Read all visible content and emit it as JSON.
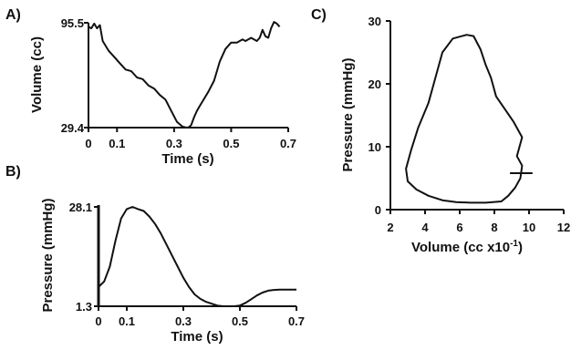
{
  "chart_data": [
    {
      "panel": "A)",
      "type": "line",
      "xlabel": "Time (s)",
      "ylabel": "Volume (cc)",
      "xlim": [
        0,
        0.7
      ],
      "ylim": [
        29.4,
        95.5
      ],
      "xticks": [
        0,
        0.1,
        0.3,
        0.5,
        0.7
      ],
      "xtick_labels": [
        "0",
        "0.1",
        "0.3",
        "0.5",
        "0.7"
      ],
      "yticks": [
        29.4,
        95.5
      ],
      "ytick_labels": [
        "29.4",
        "95.5"
      ],
      "x": [
        0,
        0.01,
        0.02,
        0.03,
        0.04,
        0.05,
        0.07,
        0.09,
        0.11,
        0.13,
        0.15,
        0.17,
        0.19,
        0.21,
        0.23,
        0.25,
        0.27,
        0.29,
        0.31,
        0.33,
        0.34,
        0.35,
        0.36,
        0.37,
        0.38,
        0.39,
        0.4,
        0.42,
        0.44,
        0.45,
        0.46,
        0.47,
        0.48,
        0.5,
        0.52,
        0.54,
        0.55,
        0.57,
        0.59,
        0.6,
        0.61,
        0.62,
        0.63,
        0.64,
        0.65,
        0.66,
        0.67
      ],
      "y": [
        93,
        92,
        95,
        92,
        94,
        84,
        78,
        74,
        70,
        66,
        65,
        61,
        60,
        56,
        54,
        50,
        47,
        40,
        33,
        30,
        29.6,
        29.4,
        31,
        36,
        40,
        43,
        46,
        52,
        59,
        65,
        71,
        75,
        79,
        83,
        83,
        85,
        84,
        86,
        84,
        86,
        91,
        87,
        86,
        92,
        96,
        95,
        93
      ]
    },
    {
      "panel": "B)",
      "type": "line",
      "xlabel": "Time (s)",
      "ylabel": "Pressure (mmHg)",
      "xlim": [
        0,
        0.7
      ],
      "ylim": [
        1.3,
        28.1
      ],
      "xticks": [
        0,
        0.1,
        0.3,
        0.5,
        0.7
      ],
      "xtick_labels": [
        "0",
        "0.1",
        "0.3",
        "0.5",
        "0.7"
      ],
      "yticks": [
        1.3,
        28.1
      ],
      "ytick_labels": [
        "1.3",
        "28.1"
      ],
      "x": [
        0,
        0.02,
        0.04,
        0.06,
        0.08,
        0.1,
        0.12,
        0.14,
        0.16,
        0.18,
        0.2,
        0.22,
        0.24,
        0.26,
        0.28,
        0.3,
        0.32,
        0.34,
        0.36,
        0.38,
        0.4,
        0.42,
        0.44,
        0.46,
        0.48,
        0.5,
        0.52,
        0.54,
        0.56,
        0.58,
        0.6,
        0.62,
        0.64,
        0.66,
        0.68,
        0.7
      ],
      "y": [
        6.5,
        8,
        12,
        19,
        25,
        27.5,
        28.1,
        27.5,
        27,
        25.5,
        23.5,
        21,
        18,
        15,
        12,
        9,
        6.5,
        4.5,
        3.3,
        2.5,
        2,
        1.5,
        1.3,
        1.3,
        1.3,
        1.5,
        2.2,
        3.2,
        4.2,
        5,
        5.5,
        5.7,
        5.8,
        5.8,
        5.8,
        5.8
      ]
    },
    {
      "panel": "C)",
      "type": "line",
      "xlabel": "Volume (cc x10",
      "xlabel_sup": "-1",
      "xlabel_end": ")",
      "ylabel": "Pressure (mmHg)",
      "xlim": [
        2,
        12
      ],
      "ylim": [
        0,
        30
      ],
      "xticks": [
        2,
        4,
        6,
        8,
        10,
        12
      ],
      "xtick_labels": [
        "2",
        "4",
        "6",
        "8",
        "10",
        "12"
      ],
      "yticks": [
        0,
        10,
        20,
        30
      ],
      "ytick_labels": [
        "0",
        "10",
        "20",
        "30"
      ],
      "x": [
        5.6,
        6.4,
        6.8,
        7.2,
        7.5,
        7.8,
        8.1,
        8.6,
        9.1,
        9.6,
        9.3,
        9.6,
        9.5,
        9.2,
        8.8,
        8.4,
        7.5,
        6.6,
        5.8,
        5,
        4.2,
        3.5,
        3,
        2.9,
        3.2,
        3.6,
        4.2,
        4.6,
        5,
        5.6
      ],
      "y": [
        27.2,
        27.8,
        27.6,
        25.5,
        23,
        21,
        18,
        16,
        14,
        11.5,
        8.5,
        7,
        5,
        3.5,
        2.2,
        1.3,
        1.1,
        1.1,
        1.2,
        1.5,
        2.2,
        3.2,
        4.5,
        6.5,
        9.5,
        13,
        17,
        21,
        25,
        27.2
      ]
    }
  ]
}
